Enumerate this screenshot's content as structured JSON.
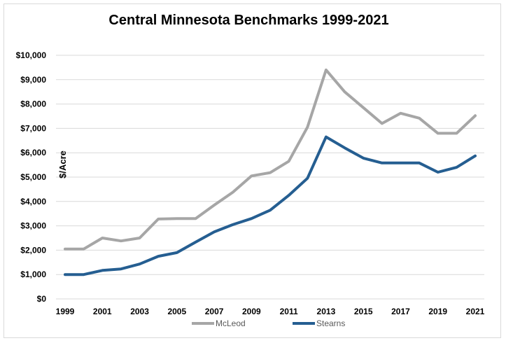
{
  "chart_data": {
    "type": "line",
    "title": "Central Minnesota Benchmarks 1999-2021",
    "xlabel": "",
    "ylabel": "$/Acre",
    "x": [
      1999,
      2000,
      2001,
      2002,
      2003,
      2004,
      2005,
      2006,
      2007,
      2008,
      2009,
      2010,
      2011,
      2012,
      2013,
      2014,
      2015,
      2016,
      2017,
      2018,
      2019,
      2020,
      2021
    ],
    "x_tick_labels": [
      "1999",
      "2001",
      "2003",
      "2005",
      "2007",
      "2009",
      "2011",
      "2013",
      "2015",
      "2017",
      "2019",
      "2021"
    ],
    "x_ticks": [
      1999,
      2001,
      2003,
      2005,
      2007,
      2009,
      2011,
      2013,
      2015,
      2017,
      2019,
      2021
    ],
    "ylim": [
      0,
      10000
    ],
    "y_ticks": [
      0,
      1000,
      2000,
      3000,
      4000,
      5000,
      6000,
      7000,
      8000,
      9000,
      10000
    ],
    "y_tick_labels": [
      "$0",
      "$1,000",
      "$2,000",
      "$3,000",
      "$4,000",
      "$5,000",
      "$6,000",
      "$7,000",
      "$8,000",
      "$9,000",
      "$10,000"
    ],
    "grid": true,
    "legend_position": "bottom",
    "series": [
      {
        "name": "McLeod",
        "color": "#a6a6a6",
        "values": [
          2050,
          2050,
          2500,
          2380,
          2500,
          3280,
          3300,
          3300,
          3850,
          4380,
          5050,
          5180,
          5650,
          7050,
          9400,
          8500,
          7850,
          7200,
          7620,
          7420,
          6800,
          6800,
          7520
        ]
      },
      {
        "name": "Stearns",
        "color": "#255e91",
        "values": [
          1000,
          1000,
          1170,
          1230,
          1430,
          1750,
          1900,
          2330,
          2750,
          3050,
          3300,
          3640,
          4250,
          4950,
          6650,
          6200,
          5780,
          5580,
          5580,
          5580,
          5200,
          5400,
          5870
        ]
      }
    ]
  }
}
